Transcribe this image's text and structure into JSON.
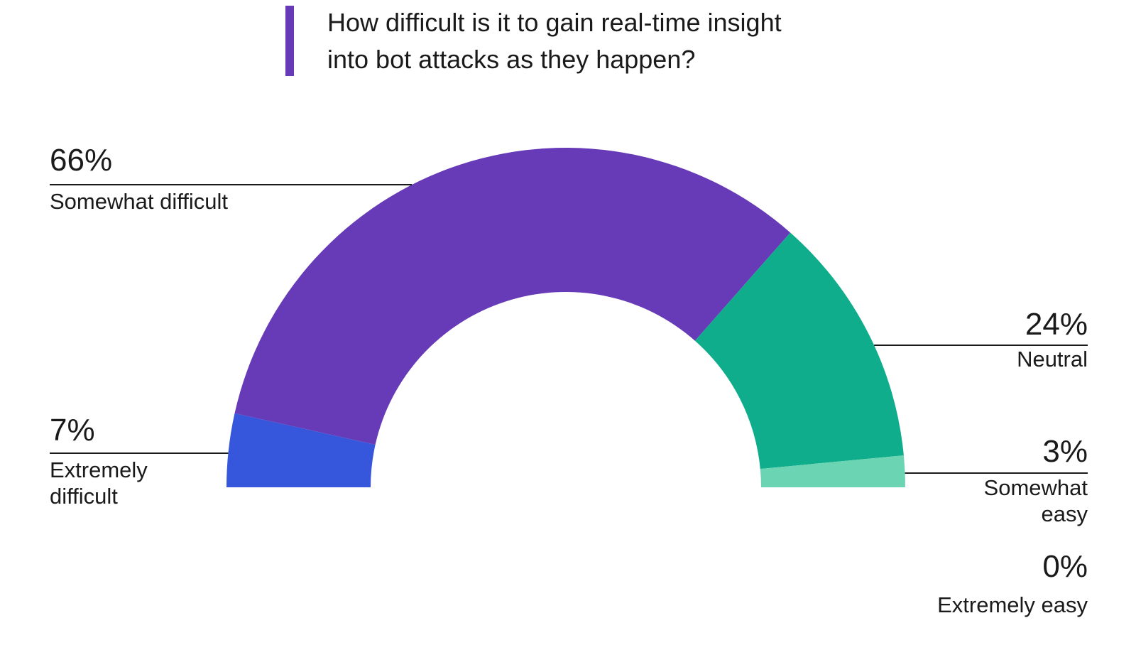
{
  "title_lines": [
    "How difficult is it to gain real-time insight",
    "into bot attacks as they happen?"
  ],
  "colors": {
    "accent": "#673ab7",
    "extremely_difficult": "#3657db",
    "somewhat_difficult": "#673ab7",
    "neutral": "#0fad8c",
    "somewhat_easy": "#6bd5b3",
    "extremely_easy": "#b8eadb",
    "leader_line": "#1a1a1a"
  },
  "chart_data": {
    "type": "pie",
    "variant": "half-donut",
    "title": "How difficult is it to gain real-time insight into bot attacks as they happen?",
    "unit": "%",
    "slices": [
      {
        "label": "Extremely difficult",
        "label_lines": [
          "Extremely",
          "difficult"
        ],
        "value": 7,
        "value_label": "7%",
        "color": "#3657db",
        "label_side": "left"
      },
      {
        "label": "Somewhat difficult",
        "label_lines": [
          "Somewhat difficult"
        ],
        "value": 66,
        "value_label": "66%",
        "color": "#673ab7",
        "label_side": "left"
      },
      {
        "label": "Neutral",
        "label_lines": [
          "Neutral"
        ],
        "value": 24,
        "value_label": "24%",
        "color": "#0fad8c",
        "label_side": "right"
      },
      {
        "label": "Somewhat easy",
        "label_lines": [
          "Somewhat",
          "easy"
        ],
        "value": 3,
        "value_label": "3%",
        "color": "#6bd5b3",
        "label_side": "right"
      },
      {
        "label": "Extremely easy",
        "label_lines": [
          "Extremely easy"
        ],
        "value": 0,
        "value_label": "0%",
        "color": "#b8eadb",
        "label_side": "right"
      }
    ]
  }
}
